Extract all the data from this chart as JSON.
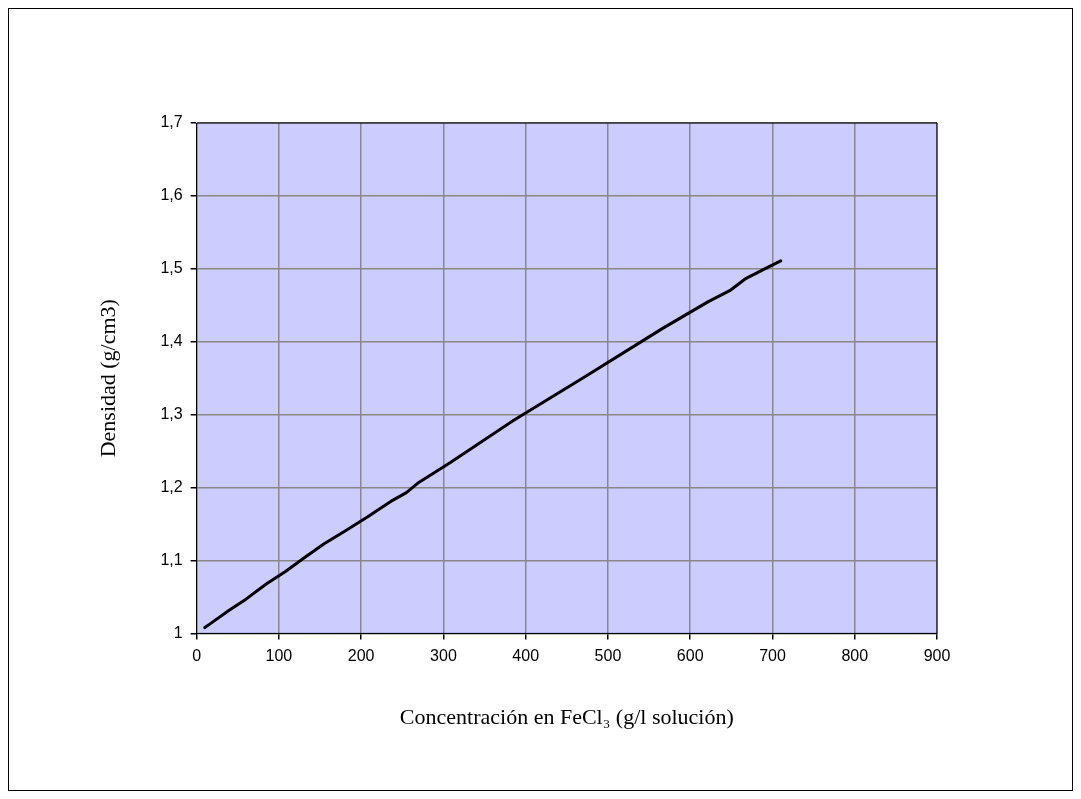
{
  "chart_data": {
    "type": "line",
    "xlabel": "Concentración en FeCl₃ (g/l solución)",
    "ylabel": "Densidad (g/cm3)",
    "series": [
      {
        "color": "#000000",
        "x": [
          10,
          15,
          40,
          60,
          85,
          108,
          130,
          155,
          180,
          208,
          236,
          255,
          270,
          308,
          385,
          472,
          566,
          622,
          648,
          668,
          710
        ],
        "values": [
          1.008,
          1.012,
          1.032,
          1.047,
          1.068,
          1.085,
          1.103,
          1.123,
          1.14,
          1.16,
          1.181,
          1.193,
          1.207,
          1.234,
          1.292,
          1.352,
          1.418,
          1.455,
          1.47,
          1.487,
          1.511
        ]
      }
    ],
    "xlim": [
      0,
      900
    ],
    "xticks": [
      0,
      100,
      200,
      300,
      400,
      500,
      600,
      700,
      800,
      900
    ],
    "ylim": [
      1,
      1.7
    ],
    "yticks": [
      {
        "value": 1,
        "label": "1"
      },
      {
        "value": 1.1,
        "label": "1,1"
      },
      {
        "value": 1.2,
        "label": "1,2"
      },
      {
        "value": 1.3,
        "label": "1,3"
      },
      {
        "value": 1.4,
        "label": "1,4"
      },
      {
        "value": 1.5,
        "label": "1,5"
      },
      {
        "value": 1.6,
        "label": "1,6"
      },
      {
        "value": 1.7,
        "label": "1,7"
      }
    ],
    "grid": true,
    "marker": "none",
    "line_style": "solid"
  }
}
